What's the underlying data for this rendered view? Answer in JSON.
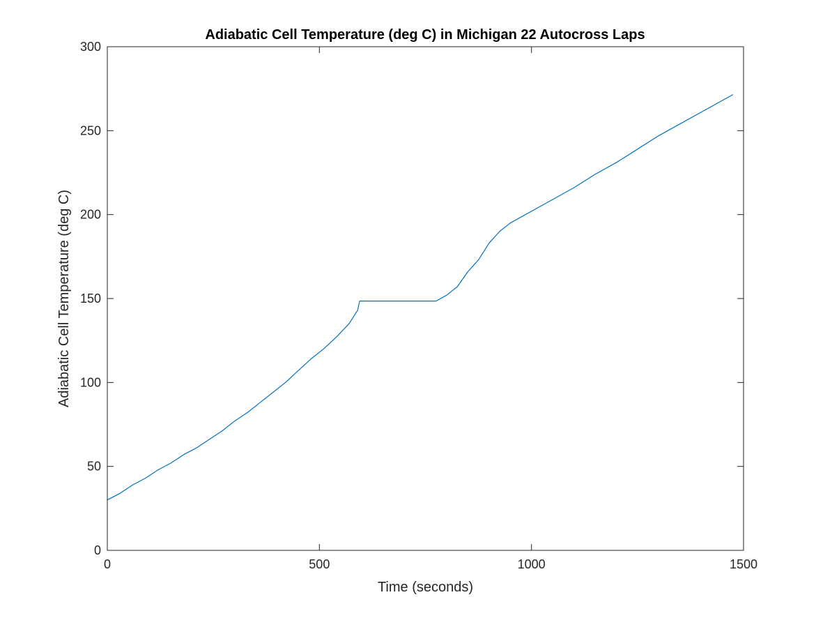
{
  "chart_data": {
    "type": "line",
    "title": "Adiabatic Cell Temperature (deg C) in Michigan 22 Autocross Laps",
    "xlabel": "Time (seconds)",
    "ylabel": "Adiabatic Cell Temperature (deg C)",
    "xlim": [
      0,
      1500
    ],
    "ylim": [
      0,
      300
    ],
    "xticks": [
      0,
      500,
      1000,
      1500
    ],
    "yticks": [
      0,
      50,
      100,
      150,
      200,
      250,
      300
    ],
    "grid": false,
    "legend": "none",
    "series": [
      {
        "color": "#0072BD",
        "x": [
          0,
          30,
          60,
          90,
          120,
          150,
          180,
          210,
          240,
          270,
          300,
          330,
          360,
          390,
          420,
          450,
          480,
          510,
          540,
          570,
          590,
          595,
          700,
          775,
          800,
          825,
          850,
          875,
          900,
          925,
          950,
          1000,
          1050,
          1100,
          1150,
          1200,
          1250,
          1300,
          1350,
          1400,
          1450,
          1475
        ],
        "y": [
          30,
          34,
          39,
          43,
          48,
          52,
          57,
          61,
          66,
          71,
          77,
          82,
          88,
          94,
          100,
          107,
          114,
          120,
          127,
          135,
          143,
          148.5,
          148.5,
          148.5,
          152,
          157,
          166,
          173,
          183,
          190,
          195,
          202,
          209,
          216,
          224,
          231,
          239,
          247,
          254,
          261,
          268,
          271.5
        ]
      }
    ]
  }
}
